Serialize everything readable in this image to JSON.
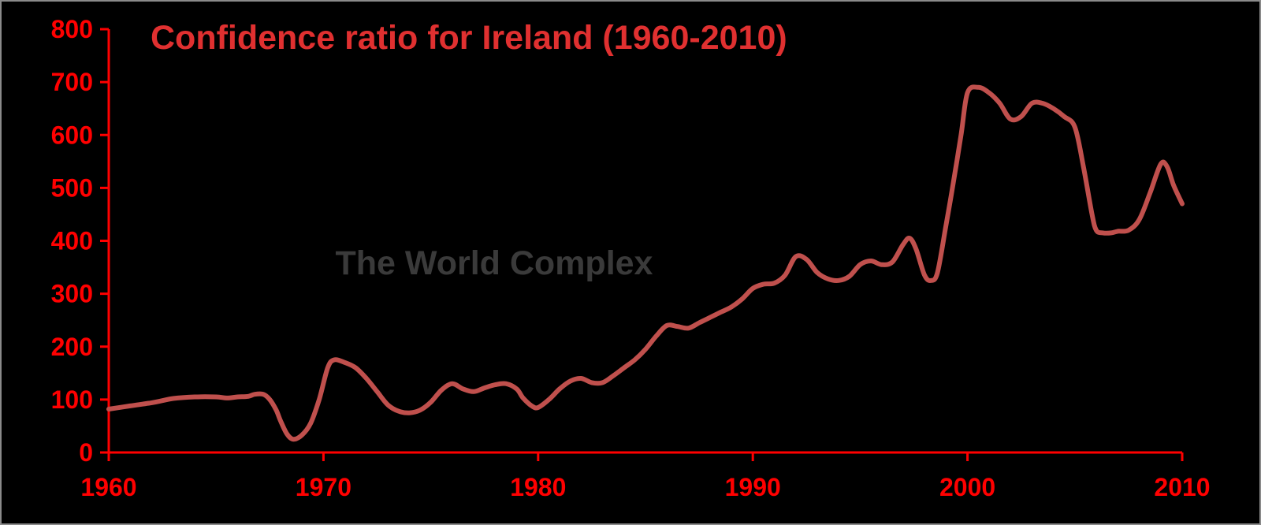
{
  "chart_data": {
    "type": "line",
    "title": "Confidence ratio for Ireland (1960-2010)",
    "watermark": "The World Complex",
    "xlabel": "",
    "ylabel": "",
    "xlim": [
      1960,
      2010
    ],
    "ylim": [
      0,
      800
    ],
    "x_ticks": [
      1960,
      1970,
      1980,
      1990,
      2000,
      2010
    ],
    "y_ticks": [
      0,
      100,
      200,
      300,
      400,
      500,
      600,
      700,
      800
    ],
    "grid": false,
    "legend": "none",
    "colors": {
      "background": "#000000",
      "axis": "#ff0000",
      "labels": "#ff0000",
      "title": "#e03030",
      "line": "#c0504d",
      "watermark": "#3a3a3a"
    },
    "series": [
      {
        "x": [
          1960,
          1961,
          1962,
          1962.5,
          1963,
          1964,
          1965,
          1965.5,
          1966,
          1966.5,
          1966.8,
          1967.2,
          1967.5,
          1967.8,
          1968,
          1968.3,
          1968.6,
          1969,
          1969.4,
          1969.8,
          1970.2,
          1970.5,
          1971,
          1971.5,
          1972,
          1972.5,
          1973,
          1973.5,
          1974,
          1974.5,
          1975,
          1975.5,
          1976,
          1976.5,
          1977,
          1977.5,
          1978,
          1978.5,
          1979,
          1979.3,
          1979.7,
          1980,
          1980.5,
          1981,
          1981.5,
          1982,
          1982.5,
          1983,
          1983.5,
          1984,
          1984.5,
          1985,
          1985.5,
          1986,
          1986.5,
          1987,
          1987.5,
          1988,
          1988.5,
          1989,
          1989.5,
          1990,
          1990.5,
          1991,
          1991.5,
          1992,
          1992.5,
          1993,
          1993.5,
          1994,
          1994.5,
          1995,
          1995.5,
          1996,
          1996.5,
          1997,
          1997.3,
          1997.6,
          1998,
          1998.3,
          1998.6,
          1999,
          1999.3,
          1999.7,
          2000,
          2000.5,
          2001,
          2001.5,
          2002,
          2002.5,
          2003,
          2003.5,
          2004,
          2004.5,
          2005,
          2005.4,
          2005.8,
          2006,
          2006.3,
          2006.7,
          2007,
          2007.5,
          2008,
          2008.5,
          2009,
          2009.3,
          2009.6,
          2010
        ],
        "y": [
          82,
          88,
          94,
          98,
          102,
          105,
          105,
          103,
          105,
          106,
          110,
          110,
          100,
          80,
          60,
          35,
          25,
          33,
          55,
          100,
          160,
          175,
          170,
          160,
          140,
          115,
          90,
          78,
          75,
          80,
          95,
          118,
          130,
          120,
          115,
          122,
          128,
          130,
          120,
          103,
          88,
          85,
          100,
          120,
          135,
          140,
          132,
          132,
          145,
          160,
          175,
          195,
          220,
          240,
          238,
          235,
          245,
          255,
          265,
          275,
          290,
          310,
          318,
          320,
          335,
          370,
          365,
          340,
          328,
          325,
          333,
          355,
          362,
          355,
          360,
          393,
          405,
          385,
          335,
          325,
          340,
          430,
          500,
          600,
          680,
          690,
          680,
          660,
          630,
          635,
          660,
          660,
          650,
          635,
          615,
          540,
          450,
          420,
          415,
          415,
          418,
          420,
          440,
          490,
          545,
          540,
          505,
          470
        ]
      }
    ]
  }
}
